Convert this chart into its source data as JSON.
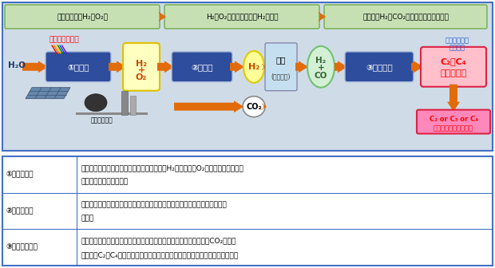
{
  "bg_color": "#cfdce8",
  "diagram_border": "#4472c4",
  "top_box_color": "#c6e0b4",
  "top_box_border": "#70ad47",
  "top_box_texts": [
    "水を分解してH₂とO₂に",
    "H₂とO₂の混合ガスからH₂を分離",
    "分離したH₂とCO₂からオレフィンを製造"
  ],
  "arrow_color": "#e26b0a",
  "blue_box_color": "#2e4d9c",
  "photo_catalyst_text": "①光触媒",
  "separation_membrane_text": "②分離膜",
  "synthesis_catalyst_text": "③合成触媒",
  "h2o_text": "H₂O",
  "solar_text": "太陽エネルギー",
  "h2_o2_text": "H₂\n+\nO₂",
  "h2_text": "H₂",
  "h2_co_text": "H₂\n+\nCO",
  "co2_text": "CO₂",
  "kaishitsu_text": "改質",
  "kaishitsu_sub": "(既存技術)",
  "plastic_line1": "プラスチック",
  "plastic_line2": "等の原料",
  "olefin_line1": "C₂～C₄",
  "olefin_line2": "オレフィン",
  "olefin_box_line1": "C₂ or C₃ or C₄",
  "olefin_box_line2": "目的別オレフィン製造",
  "denki_text": "発電所、工場",
  "table_rows": [
    {
      "label": "①光触媒開発",
      "line1": "太陽光エネルギーを利用した水分解で水素（H₂）と酸素（O₂）を製造する光触媒",
      "line2": "およびモジュールの開発"
    },
    {
      "label": "②分離膜開発",
      "line1": "発生した水素と酸素の混合気体から水素を分離する分離膜およびモジュール",
      "line2": "の開発"
    },
    {
      "label": "③合成触媒開発",
      "line1": "水から製造する水素と発電所や工場などから排出する二酸化炭素（CO₂）を原",
      "line2": "料としてC₂～C₄オレフィンを目的別に合成する触媒およびプロセス技術の開発"
    }
  ]
}
